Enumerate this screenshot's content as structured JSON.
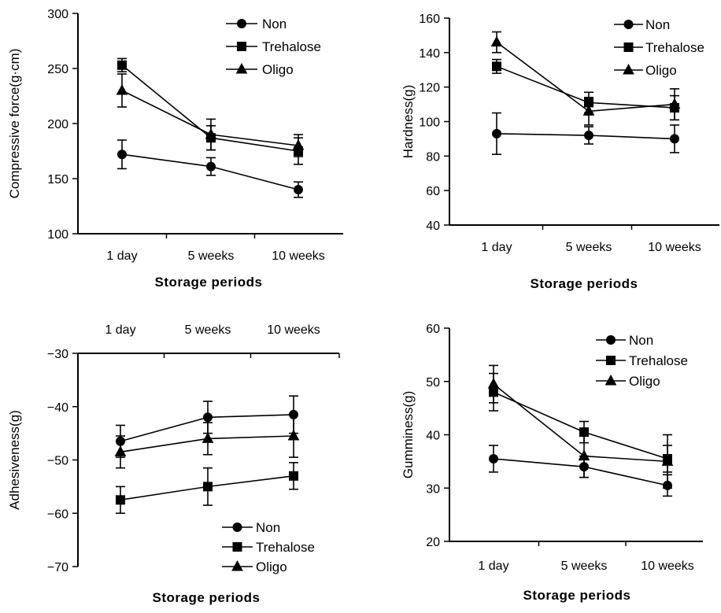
{
  "chart_data": [
    {
      "type": "line",
      "ylabel": "Compressive force(g·cm)",
      "xlabel": "Storage periods",
      "categories": [
        "1 day",
        "5 weeks",
        "10 weeks"
      ],
      "ylim": [
        100,
        300
      ],
      "yticks": [
        100,
        150,
        200,
        250,
        300
      ],
      "legend_position": "top-right",
      "series": [
        {
          "name": "Non",
          "marker": "circle",
          "values": [
            172,
            161,
            140
          ],
          "errors": [
            13,
            8,
            7
          ]
        },
        {
          "name": "Trehalose",
          "marker": "square",
          "values": [
            253,
            187,
            175
          ],
          "errors": [
            6,
            11,
            12
          ]
        },
        {
          "name": "Oligo",
          "marker": "triangle",
          "values": [
            230,
            190,
            180
          ],
          "errors": [
            15,
            14,
            10
          ]
        }
      ]
    },
    {
      "type": "line",
      "ylabel": "Hardness(g)",
      "xlabel": "Storage periods",
      "categories": [
        "1 day",
        "5 weeks",
        "10 weeks"
      ],
      "ylim": [
        40,
        160
      ],
      "yticks": [
        40,
        60,
        80,
        100,
        120,
        140,
        160
      ],
      "legend_position": "top-right",
      "series": [
        {
          "name": "Non",
          "marker": "circle",
          "values": [
            93,
            92,
            90
          ],
          "errors": [
            12,
            5,
            8
          ]
        },
        {
          "name": "Trehalose",
          "marker": "square",
          "values": [
            132,
            111,
            108
          ],
          "errors": [
            4,
            6,
            7
          ]
        },
        {
          "name": "Oligo",
          "marker": "triangle",
          "values": [
            146,
            106,
            110
          ],
          "errors": [
            6,
            8,
            9
          ]
        }
      ]
    },
    {
      "type": "line",
      "ylabel": "Adhesiveness(g)",
      "xlabel": "Storage periods",
      "categories": [
        "1 day",
        "5 weeks",
        "10 weeks"
      ],
      "ylim": [
        -70,
        -30
      ],
      "yticks": [
        -70,
        -60,
        -50,
        -40,
        -30
      ],
      "legend_position": "bottom-right",
      "series": [
        {
          "name": "Non",
          "marker": "circle",
          "values": [
            -46.5,
            -42,
            -41.5
          ],
          "errors": [
            3,
            3,
            3.5
          ]
        },
        {
          "name": "Trehalose",
          "marker": "square",
          "values": [
            -57.5,
            -55,
            -53
          ],
          "errors": [
            2.5,
            3.5,
            2.5
          ]
        },
        {
          "name": "Oligo",
          "marker": "triangle",
          "values": [
            -48.5,
            -46,
            -45.5
          ],
          "errors": [
            3,
            3,
            4
          ]
        }
      ]
    },
    {
      "type": "line",
      "ylabel": "Gumminess(g)",
      "xlabel": "Storage periods",
      "categories": [
        "1 day",
        "5 weeks",
        "10 weeks"
      ],
      "ylim": [
        20,
        60
      ],
      "yticks": [
        20,
        30,
        40,
        50,
        60
      ],
      "legend_position": "top-right",
      "series": [
        {
          "name": "Non",
          "marker": "circle",
          "values": [
            35.5,
            34,
            30.5
          ],
          "errors": [
            2.5,
            2,
            2
          ]
        },
        {
          "name": "Trehalose",
          "marker": "square",
          "values": [
            48,
            40.5,
            35.5
          ],
          "errors": [
            3.5,
            2,
            2.5
          ]
        },
        {
          "name": "Oligo",
          "marker": "triangle",
          "values": [
            49.5,
            36,
            35
          ],
          "errors": [
            3.5,
            4,
            5
          ]
        }
      ]
    }
  ]
}
